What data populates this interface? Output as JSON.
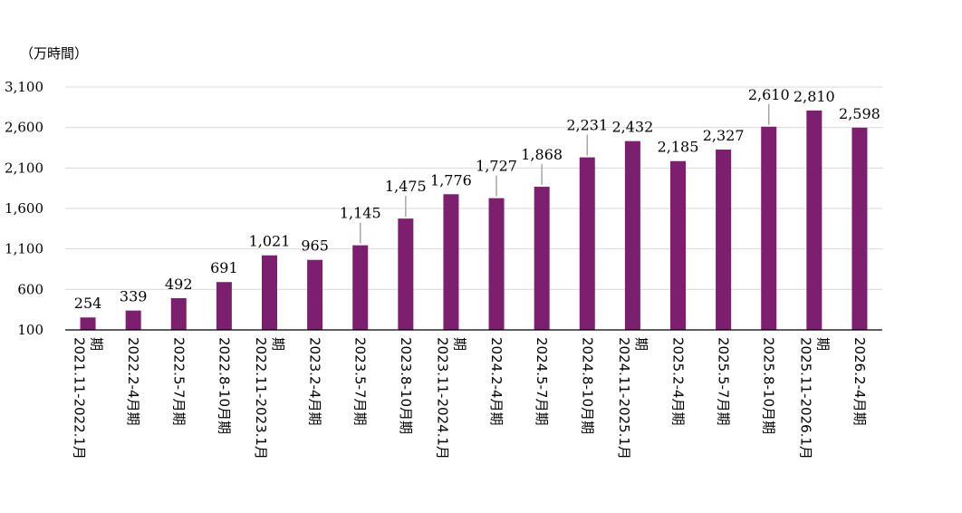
{
  "chart_data": {
    "type": "bar",
    "title": "",
    "xlabel": "",
    "ylabel": "（万時間）",
    "ylim": [
      100,
      3100
    ],
    "yticks": [
      100,
      600,
      1100,
      1600,
      2100,
      2600,
      3100
    ],
    "ytick_labels": [
      "100",
      "600",
      "1,100",
      "1,600",
      "2,100",
      "2,600",
      "3,100"
    ],
    "grid": true,
    "legend": "none",
    "bar_color": "#7b1f6e",
    "categories": [
      "2021.11-2022.1月期",
      "2022.2-4月期",
      "2022.5-7月期",
      "2022.8-10月期",
      "2022.11-2023.1月期",
      "2023.2-4月期",
      "2023.5-7月期",
      "2023.8-10月期",
      "2023.11-2024.1月期",
      "2024.2-4月期",
      "2024.5-7月期",
      "2024.8-10月期",
      "2024.11-2025.1月期",
      "2025.2-4月期",
      "2025.5-7月期",
      "2025.8-10月期",
      "2025.11-2026.1月期",
      "2026.2-4月期"
    ],
    "values": [
      254,
      339,
      492,
      691,
      1021,
      965,
      1145,
      1475,
      1776,
      1727,
      1868,
      2231,
      2432,
      2185,
      2327,
      2610,
      2810,
      2598
    ],
    "value_labels": [
      "254",
      "339",
      "492",
      "691",
      "1,021",
      "965",
      "1,145",
      "1,475",
      "1,776",
      "1,727",
      "1,868",
      "2,231",
      "2,432",
      "2,185",
      "2,327",
      "2,610",
      "2,810",
      "2,598"
    ]
  }
}
